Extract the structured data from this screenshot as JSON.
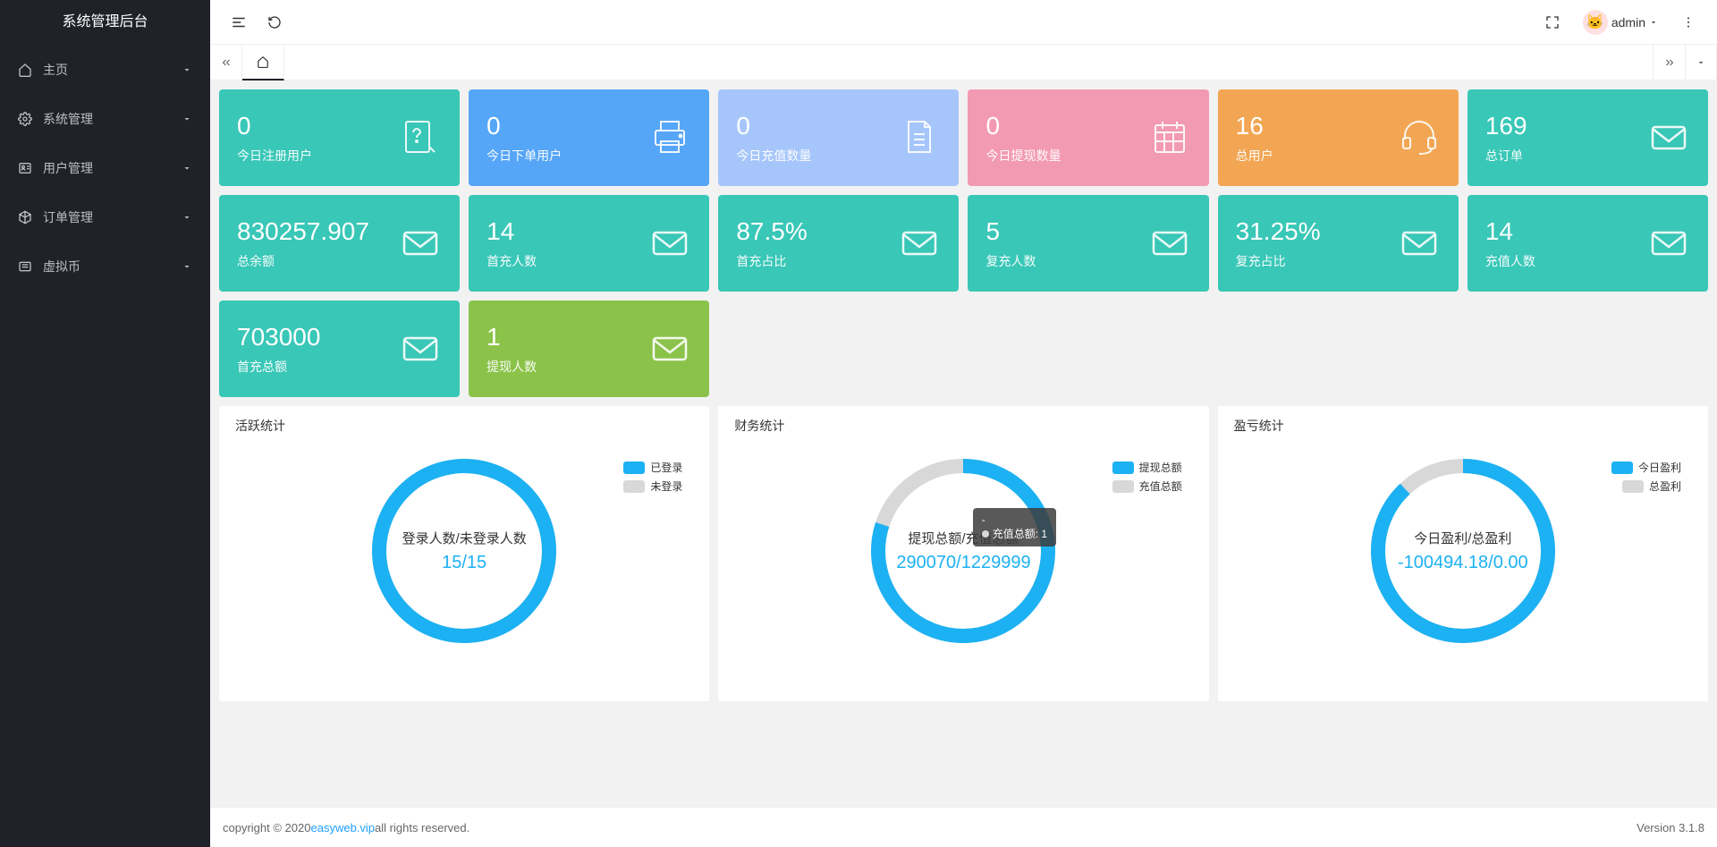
{
  "app": {
    "title": "系统管理后台"
  },
  "nav": [
    {
      "label": "主页",
      "icon": "home"
    },
    {
      "label": "系统管理",
      "icon": "gear"
    },
    {
      "label": "用户管理",
      "icon": "users"
    },
    {
      "label": "订单管理",
      "icon": "cube"
    },
    {
      "label": "虚拟币",
      "icon": "coin"
    }
  ],
  "topbar": {
    "username": "admin"
  },
  "cards": {
    "row1": [
      {
        "value": "0",
        "label": "今日注册用户",
        "icon": "note-question",
        "bg": "#39c7b7"
      },
      {
        "value": "0",
        "label": "今日下单用户",
        "icon": "printer",
        "bg": "#56a6f8"
      },
      {
        "value": "0",
        "label": "今日充值数量",
        "icon": "doc-lines",
        "bg": "#a6c6fb"
      },
      {
        "value": "0",
        "label": "今日提现数量",
        "icon": "calendar",
        "bg": "#f39ab3"
      },
      {
        "value": "16",
        "label": "总用户",
        "icon": "headset",
        "bg": "#f2a654"
      },
      {
        "value": "169",
        "label": "总订单",
        "icon": "mail",
        "bg": "#39c7b7"
      }
    ],
    "row2": [
      {
        "value": "830257.907",
        "label": "总余额",
        "icon": "mail",
        "bg": "#39c7b7"
      },
      {
        "value": "14",
        "label": "首充人数",
        "icon": "mail",
        "bg": "#39c7b7"
      },
      {
        "value": "87.5%",
        "label": "首充占比",
        "icon": "mail",
        "bg": "#39c7b7"
      },
      {
        "value": "5",
        "label": "复充人数",
        "icon": "mail",
        "bg": "#39c7b7"
      },
      {
        "value": "31.25%",
        "label": "复充占比",
        "icon": "mail",
        "bg": "#39c7b7"
      },
      {
        "value": "14",
        "label": "充值人数",
        "icon": "mail",
        "bg": "#39c7b7"
      }
    ],
    "row3": [
      {
        "value": "703000",
        "label": "首充总额",
        "icon": "mail",
        "bg": "#39c7b7"
      },
      {
        "value": "1",
        "label": "提现人数",
        "icon": "mail",
        "bg": "#8bc34a"
      }
    ]
  },
  "charts": {
    "activity": {
      "title": "活跃统计",
      "legend": [
        {
          "label": "已登录",
          "color": "#1cb1f2"
        },
        {
          "label": "未登录",
          "color": "#d8d8d8"
        }
      ],
      "donut": {
        "primary_color": "#1cb1f2",
        "secondary_color": "#d8d8d8",
        "fraction": 1.0,
        "ring_width": 16
      },
      "center_label": "登录人数/未登录人数",
      "center_value": "15/15"
    },
    "finance": {
      "title": "财务统计",
      "legend": [
        {
          "label": "提现总额",
          "color": "#1cb1f2"
        },
        {
          "label": "充值总额",
          "color": "#d8d8d8"
        }
      ],
      "donut": {
        "primary_color": "#1cb1f2",
        "secondary_color": "#d8d8d8",
        "fraction": 0.8,
        "ring_width": 16
      },
      "center_label": "提现总额/充值总额",
      "center_value": "290070/1229999",
      "tooltip": {
        "title": "-",
        "dot_color": "#d8d8d8",
        "text": "充值总额: 1"
      }
    },
    "profit": {
      "title": "盈亏统计",
      "legend": [
        {
          "label": "今日盈利",
          "color": "#1cb1f2"
        },
        {
          "label": "总盈利",
          "color": "#d8d8d8"
        }
      ],
      "donut": {
        "primary_color": "#1cb1f2",
        "secondary_color": "#d8d8d8",
        "fraction": 0.88,
        "ring_width": 16
      },
      "center_label": "今日盈利/总盈利",
      "center_value": "-100494.18/0.00"
    }
  },
  "footer": {
    "copyright_prefix": "copyright © 2020 ",
    "link_text": "easyweb.vip",
    "copyright_suffix": " all rights reserved.",
    "version": "Version 3.1.8"
  }
}
